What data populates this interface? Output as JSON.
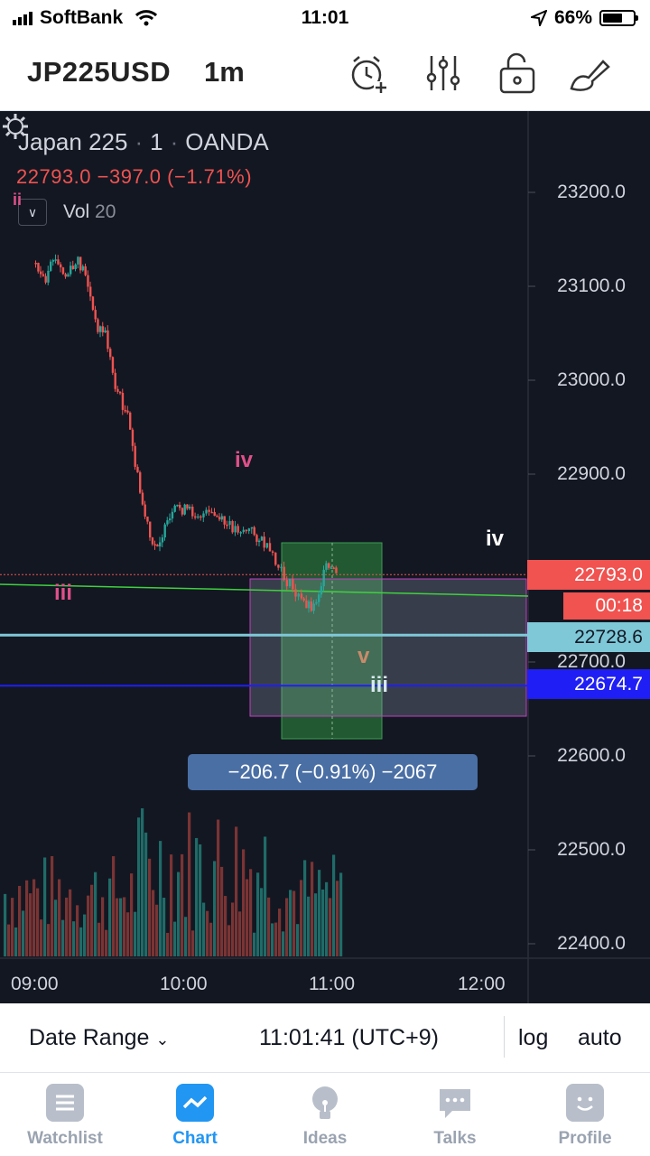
{
  "status_bar": {
    "carrier": "SoftBank",
    "time": "11:01",
    "battery": "66%",
    "battery_level": 0.66
  },
  "toolbar": {
    "symbol": "JP225USD",
    "interval": "1m",
    "icons": [
      "alarm-add-icon",
      "indicators-icon",
      "lock-icon",
      "drawing-brush-icon"
    ]
  },
  "chart": {
    "legend_name": "Japan 225",
    "legend_interval": "1",
    "legend_source": "OANDA",
    "legend_values": "22793.0 −397.0 (−1.71%)",
    "volume_label": "Vol",
    "volume_length": "20",
    "price_ticks": [
      "23200.0",
      "23100.0",
      "23000.0",
      "22900.0",
      "22700.0",
      "22600.0",
      "22500.0",
      "22400.0"
    ],
    "time_ticks": [
      "09:00",
      "10:00",
      "11:00",
      "12:00"
    ],
    "last_price": "22793.0",
    "countdown": "00:18",
    "hline_1": "22728.6",
    "hline_2": "22674.7",
    "measure_text": "−206.7 (−0.91%) −2067",
    "wave_labels": [
      "iv",
      "iv",
      "iii",
      "iii",
      "v",
      "ii"
    ],
    "colors": {
      "background": "#131722",
      "up": "#26a69a",
      "down": "#ef5350",
      "last_price": "#f05350",
      "hline_1": "#7ec8d8",
      "hline_2": "#1f1ff5",
      "trendline": "#3fd13f",
      "measure_box": "#2f8f3f"
    }
  },
  "chart_data": {
    "type": "candlestick",
    "title": "Japan 225 · 1 · OANDA",
    "ylim": [
      22380,
      23280
    ],
    "close_points": [
      {
        "t": "08:58",
        "p": 23125
      },
      {
        "t": "09:02",
        "p": 23100
      },
      {
        "t": "09:05",
        "p": 23130
      },
      {
        "t": "09:10",
        "p": 23110
      },
      {
        "t": "09:15",
        "p": 23125
      },
      {
        "t": "09:18",
        "p": 23115
      },
      {
        "t": "09:22",
        "p": 23060
      },
      {
        "t": "09:26",
        "p": 23050
      },
      {
        "t": "09:30",
        "p": 22995
      },
      {
        "t": "09:35",
        "p": 22960
      },
      {
        "t": "09:40",
        "p": 22880
      },
      {
        "t": "09:45",
        "p": 22820
      },
      {
        "t": "09:50",
        "p": 22840
      },
      {
        "t": "09:55",
        "p": 22865
      },
      {
        "t": "10:00",
        "p": 22860
      },
      {
        "t": "10:10",
        "p": 22855
      },
      {
        "t": "10:15",
        "p": 22845
      },
      {
        "t": "10:25",
        "p": 22840
      },
      {
        "t": "10:30",
        "p": 22825
      },
      {
        "t": "10:38",
        "p": 22790
      },
      {
        "t": "10:45",
        "p": 22765
      },
      {
        "t": "10:50",
        "p": 22760
      },
      {
        "t": "10:55",
        "p": 22800
      },
      {
        "t": "11:00",
        "p": 22793
      }
    ],
    "horizontal_levels": [
      22793.0,
      22728.6,
      22674.7
    ],
    "measured_change": "−206.7 (−0.91%) −2067"
  },
  "bottom_bar": {
    "date_range": "Date Range",
    "clock": "11:01:41 (UTC+9)",
    "log": "log",
    "auto": "auto"
  },
  "tabs": [
    {
      "label": "Watchlist",
      "icon": "watchlist-icon",
      "active": false
    },
    {
      "label": "Chart",
      "icon": "chart-icon",
      "active": true
    },
    {
      "label": "Ideas",
      "icon": "ideas-bulb-icon",
      "active": false
    },
    {
      "label": "Talks",
      "icon": "talks-bubble-icon",
      "active": false
    },
    {
      "label": "Profile",
      "icon": "profile-icon",
      "active": false
    }
  ]
}
